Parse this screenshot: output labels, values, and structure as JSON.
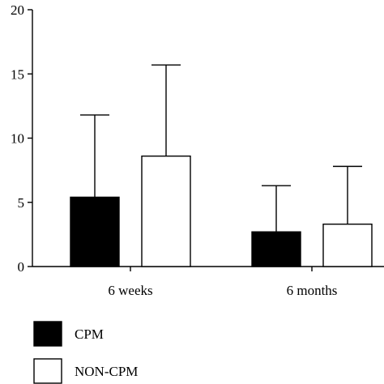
{
  "chart_data": {
    "type": "bar",
    "title": "",
    "xlabel": "",
    "ylabel": "",
    "categories": [
      "6 weeks",
      "6 months"
    ],
    "ylim": [
      0,
      20
    ],
    "yticks": [
      "0",
      "5",
      "10",
      "15",
      "20"
    ],
    "error_bars": "upper",
    "grid": false,
    "legend_position": "bottom-left",
    "series": [
      {
        "name": "CPM",
        "fill": "#000000",
        "values": [
          5.4,
          2.7
        ],
        "error_upper": [
          11.8,
          6.3
        ]
      },
      {
        "name": "NON-CPM",
        "fill": "#ffffff",
        "values": [
          8.6,
          3.3
        ],
        "error_upper": [
          15.7,
          7.8
        ]
      }
    ]
  }
}
